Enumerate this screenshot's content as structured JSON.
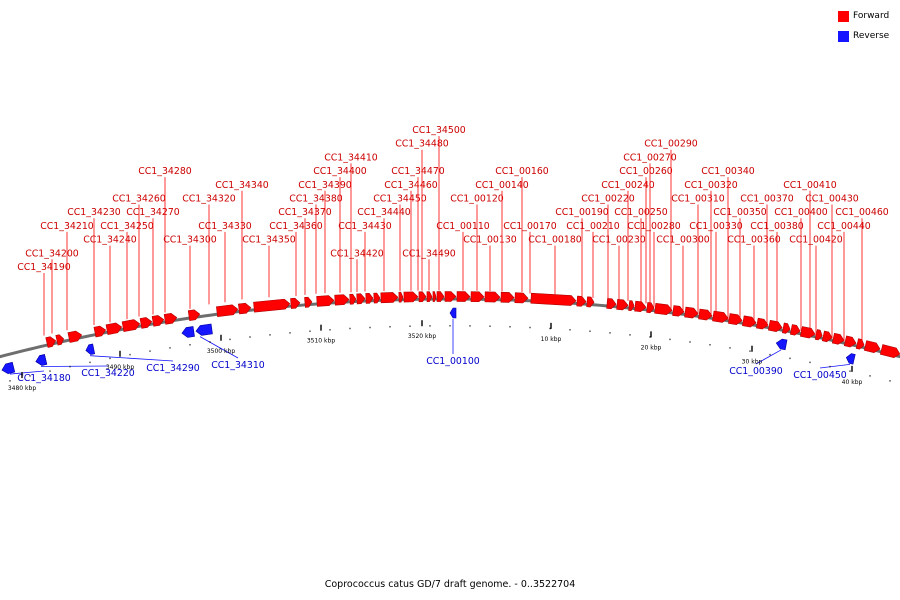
{
  "legend": {
    "forward_label": "Forward",
    "reverse_label": "Reverse",
    "forward_color": "#ff0000",
    "reverse_color": "#1515ff"
  },
  "caption": "Coprococcus catus GD/7 draft genome. - 0..3522704",
  "colors": {
    "backbone": "#6e6e6e",
    "forward": "#ff0000",
    "reverse": "#1515ff",
    "tick": "#000000",
    "forward_label": "#cc0000",
    "reverse_label": "#0000cc"
  },
  "chart_data": {
    "type": "genome-map",
    "genome": "Coprococcus catus GD/7 draft genome",
    "range": "0..3522704",
    "ticks": [
      "3480 kbp",
      "3490 kbp",
      "3500 kbp",
      "3510 kbp",
      "3520 kbp",
      "10 kbp",
      "20 kbp",
      "30 kbp",
      "40 kbp"
    ],
    "forward_genes": [
      "CC1_34190",
      "CC1_34200",
      "CC1_34210",
      "CC1_34230",
      "CC1_34240",
      "CC1_34250",
      "CC1_34260",
      "CC1_34270",
      "CC1_34280",
      "CC1_34300",
      "CC1_34320",
      "CC1_34330",
      "CC1_34340",
      "CC1_34350",
      "CC1_34360",
      "CC1_34370",
      "CC1_34380",
      "CC1_34390",
      "CC1_34400",
      "CC1_34410",
      "CC1_34420",
      "CC1_34430",
      "CC1_34440",
      "CC1_34450",
      "CC1_34460",
      "CC1_34470",
      "CC1_34480",
      "CC1_34490",
      "CC1_34500",
      "CC1_00110",
      "CC1_00120",
      "CC1_00130",
      "CC1_00140",
      "CC1_00160",
      "CC1_00170",
      "CC1_00180",
      "CC1_00190",
      "CC1_00210",
      "CC1_00220",
      "CC1_00230",
      "CC1_00240",
      "CC1_00250",
      "CC1_00260",
      "CC1_00270",
      "CC1_00280",
      "CC1_00290",
      "CC1_00300",
      "CC1_00310",
      "CC1_00320",
      "CC1_00330",
      "CC1_00340",
      "CC1_00350",
      "CC1_00360",
      "CC1_00370",
      "CC1_00380",
      "CC1_00400",
      "CC1_00410",
      "CC1_00420",
      "CC1_00430",
      "CC1_00440",
      "CC1_00460"
    ],
    "reverse_genes": [
      "CC1_34180",
      "CC1_34220",
      "CC1_34290",
      "CC1_34310",
      "CC1_00100",
      "CC1_00390",
      "CC1_00450"
    ]
  }
}
